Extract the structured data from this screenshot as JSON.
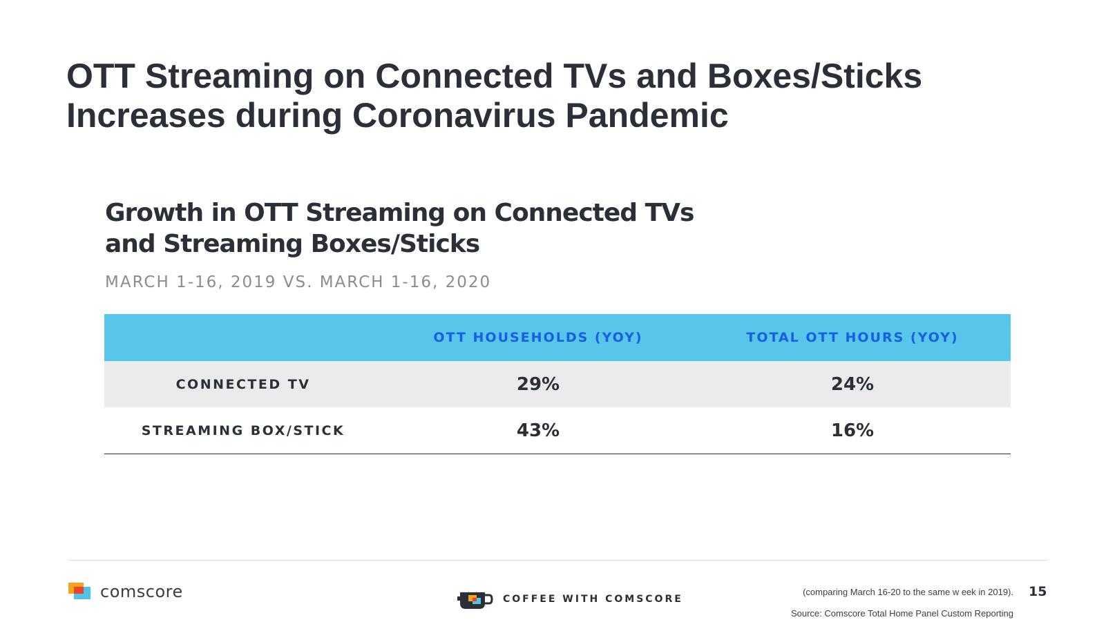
{
  "slide": {
    "title_line1": "OTT Streaming on Connected TVs and Boxes/Sticks",
    "title_line2": "Increases during Coronavirus Pandemic"
  },
  "chart": {
    "heading_line1": "Growth in OTT Streaming on Connected TVs",
    "heading_line2": "and Streaming Boxes/Sticks",
    "subtitle": "MARCH 1-16, 2019 VS. MARCH 1-16, 2020"
  },
  "chart_data": {
    "type": "table",
    "columns": [
      "",
      "OTT HOUSEHOLDS (YOY)",
      "TOTAL OTT HOURS (YOY)"
    ],
    "rows": [
      {
        "label": "CONNECTED TV",
        "values": [
          "29%",
          "24%"
        ]
      },
      {
        "label": "STREAMING BOX/STICK",
        "values": [
          "43%",
          "16%"
        ]
      }
    ]
  },
  "footer": {
    "brand": "comscore",
    "coffee": "COFFEE WITH COMSCORE",
    "footnote": "(comparing March 16-20 to the same w eek in 2019).",
    "source": "Source: Comscore Total Home Panel Custom Reporting",
    "page_number": "15"
  },
  "colors": {
    "header_fill": "#56c6ea",
    "header_text": "#1a5fe0",
    "shaded_row": "#ebebeb"
  }
}
